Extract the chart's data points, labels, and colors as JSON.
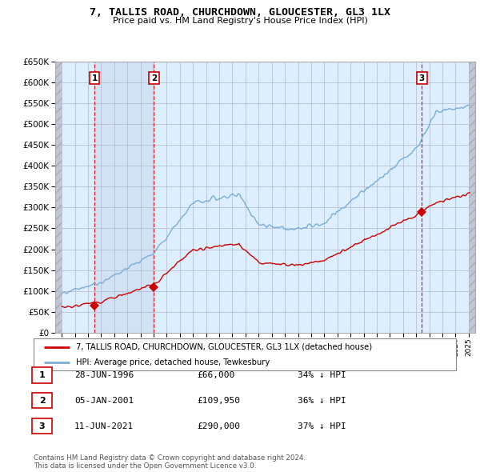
{
  "title": "7, TALLIS ROAD, CHURCHDOWN, GLOUCESTER, GL3 1LX",
  "subtitle": "Price paid vs. HM Land Registry's House Price Index (HPI)",
  "hpi_label": "HPI: Average price, detached house, Tewkesbury",
  "property_label": "7, TALLIS ROAD, CHURCHDOWN, GLOUCESTER, GL3 1LX (detached house)",
  "ylim": [
    0,
    650000
  ],
  "yticks": [
    0,
    50000,
    100000,
    150000,
    200000,
    250000,
    300000,
    350000,
    400000,
    450000,
    500000,
    550000,
    600000,
    650000
  ],
  "xlim_start": 1993.5,
  "xlim_end": 2025.5,
  "purchases": [
    {
      "year": 1996.49,
      "price": 66000,
      "label": "1"
    },
    {
      "year": 2001.02,
      "price": 109950,
      "label": "2"
    },
    {
      "year": 2021.44,
      "price": 290000,
      "label": "3"
    }
  ],
  "purchase_table": [
    {
      "num": "1",
      "date": "28-JUN-1996",
      "price": "£66,000",
      "hpi": "34% ↓ HPI"
    },
    {
      "num": "2",
      "date": "05-JAN-2001",
      "price": "£109,950",
      "hpi": "36% ↓ HPI"
    },
    {
      "num": "3",
      "date": "11-JUN-2021",
      "price": "£290,000",
      "hpi": "37% ↓ HPI"
    }
  ],
  "footer": "Contains HM Land Registry data © Crown copyright and database right 2024.\nThis data is licensed under the Open Government Licence v3.0.",
  "hpi_color": "#7aaed6",
  "property_color": "#cc0000",
  "dashed_color": "#cc0000",
  "bg_chart": "#ddeeff",
  "grid_color": "#b0b8cc",
  "box_color": "#cc0000",
  "shade_between_color": "#ccddf0"
}
